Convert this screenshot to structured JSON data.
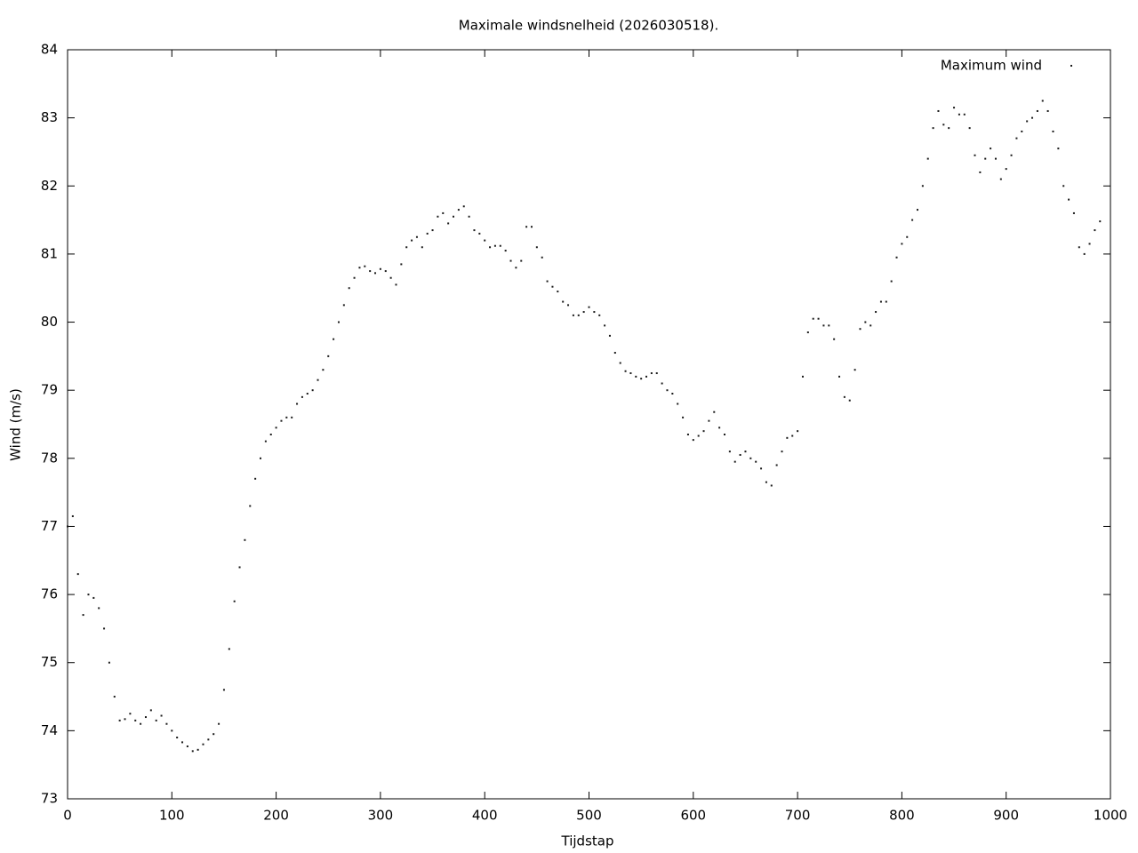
{
  "chart_data": {
    "type": "scatter",
    "title": "Maximale windsnelheid (2026030518).",
    "x_label": "Tijdstap",
    "y_label": "Wind (m/s)",
    "legend_position": "top right",
    "series": [
      {
        "name": "Maximum wind",
        "color": "#1a1a1a",
        "x": [
          0,
          5,
          10,
          15,
          20,
          25,
          30,
          35,
          40,
          45,
          50,
          55,
          60,
          65,
          70,
          75,
          80,
          85,
          90,
          95,
          100,
          105,
          110,
          115,
          120,
          125,
          130,
          135,
          140,
          145,
          150,
          155,
          160,
          165,
          170,
          175,
          180,
          185,
          190,
          195,
          200,
          205,
          210,
          215,
          220,
          225,
          230,
          235,
          240,
          245,
          250,
          255,
          260,
          265,
          270,
          275,
          280,
          285,
          290,
          295,
          300,
          305,
          310,
          315,
          320,
          325,
          330,
          335,
          340,
          345,
          350,
          355,
          360,
          365,
          370,
          375,
          380,
          385,
          390,
          395,
          400,
          405,
          410,
          415,
          420,
          425,
          430,
          435,
          440,
          445,
          450,
          455,
          460,
          465,
          470,
          475,
          480,
          485,
          490,
          495,
          500,
          505,
          510,
          515,
          520,
          525,
          530,
          535,
          540,
          545,
          550,
          555,
          560,
          565,
          570,
          575,
          580,
          585,
          590,
          595,
          600,
          605,
          610,
          615,
          620,
          625,
          630,
          635,
          640,
          645,
          650,
          655,
          660,
          665,
          670,
          675,
          680,
          685,
          690,
          695,
          700,
          705,
          710,
          715,
          720,
          725,
          730,
          735,
          740,
          745,
          750,
          755,
          760,
          765,
          770,
          775,
          780,
          785,
          790,
          795,
          800,
          805,
          810,
          815,
          820,
          825,
          830,
          835,
          840,
          845,
          850,
          855,
          860,
          865,
          870,
          875,
          880,
          885,
          890,
          895,
          900,
          905,
          910,
          915,
          920,
          925,
          930,
          935,
          940,
          945,
          950,
          955,
          960,
          965,
          970,
          975,
          980,
          985,
          990
        ],
        "values": [
          77.0,
          77.15,
          76.3,
          75.7,
          76.0,
          75.95,
          75.8,
          75.5,
          75.0,
          74.5,
          74.15,
          74.17,
          74.25,
          74.15,
          74.1,
          74.2,
          74.3,
          74.15,
          74.22,
          74.1,
          74.0,
          73.9,
          73.83,
          73.77,
          73.7,
          73.72,
          73.8,
          73.87,
          73.95,
          74.1,
          74.6,
          75.2,
          75.9,
          76.4,
          76.8,
          77.3,
          77.7,
          78.0,
          78.25,
          78.35,
          78.45,
          78.55,
          78.6,
          78.6,
          78.8,
          78.9,
          78.95,
          79.0,
          79.15,
          79.3,
          79.5,
          79.75,
          80.0,
          80.25,
          80.5,
          80.65,
          80.8,
          80.82,
          80.75,
          80.72,
          80.78,
          80.75,
          80.65,
          80.55,
          80.85,
          81.1,
          81.2,
          81.25,
          81.1,
          81.3,
          81.35,
          81.55,
          81.6,
          81.45,
          81.55,
          81.65,
          81.7,
          81.55,
          81.35,
          81.3,
          81.2,
          81.1,
          81.12,
          81.12,
          81.05,
          80.9,
          80.8,
          80.9,
          81.4,
          81.4,
          81.1,
          80.95,
          80.6,
          80.52,
          80.45,
          80.3,
          80.25,
          80.1,
          80.1,
          80.15,
          80.22,
          80.15,
          80.1,
          79.95,
          79.8,
          79.55,
          79.4,
          79.28,
          79.25,
          79.2,
          79.17,
          79.2,
          79.25,
          79.25,
          79.1,
          79.0,
          78.95,
          78.8,
          78.6,
          78.35,
          78.27,
          78.33,
          78.4,
          78.55,
          78.68,
          78.45,
          78.35,
          78.1,
          77.95,
          78.05,
          78.1,
          78.0,
          77.95,
          77.85,
          77.65,
          77.6,
          77.9,
          78.1,
          78.3,
          78.33,
          78.4,
          79.2,
          79.85,
          80.05,
          80.05,
          79.95,
          79.95,
          79.75,
          79.2,
          78.9,
          78.85,
          79.3,
          79.9,
          80.0,
          79.95,
          80.15,
          80.3,
          80.3,
          80.6,
          80.95,
          81.15,
          81.25,
          81.5,
          81.65,
          82.0,
          82.4,
          82.85,
          83.1,
          82.9,
          82.85,
          83.15,
          83.05,
          83.05,
          82.85,
          82.45,
          82.2,
          82.4,
          82.55,
          82.4,
          82.1,
          82.25,
          82.45,
          82.7,
          82.8,
          82.95,
          83.0,
          83.1,
          83.25,
          83.1,
          82.8,
          82.55,
          82.0,
          81.8,
          81.6,
          81.1,
          81.0,
          81.15,
          81.35,
          81.48
        ]
      }
    ],
    "xlim": [
      0,
      1000
    ],
    "xticks": [
      0,
      100,
      200,
      300,
      400,
      500,
      600,
      700,
      800,
      900,
      1000
    ],
    "ylim": [
      73,
      84
    ],
    "yticks": [
      73,
      74,
      75,
      76,
      77,
      78,
      79,
      80,
      81,
      82,
      83,
      84
    ]
  }
}
